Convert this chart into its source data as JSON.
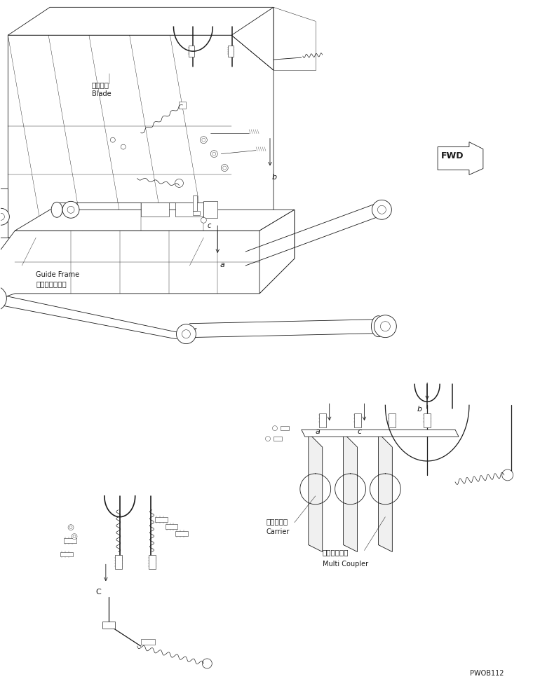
{
  "background_color": "#ffffff",
  "line_color": "#1a1a1a",
  "figure_width": 7.6,
  "figure_height": 9.7,
  "dpi": 100,
  "labels": {
    "blade_jp": "ブレード",
    "blade_en": "Blade",
    "guide_frame_jp": "ガイドフレーム",
    "guide_frame_en": "Guide Frame",
    "carrier_jp": "キャリア－",
    "carrier_en": "Carrier",
    "multi_coupler_jp": "マルチカプラ",
    "multi_coupler_en": "Multi Coupler",
    "fwd": "FWD",
    "part_code": "PWOB112"
  }
}
